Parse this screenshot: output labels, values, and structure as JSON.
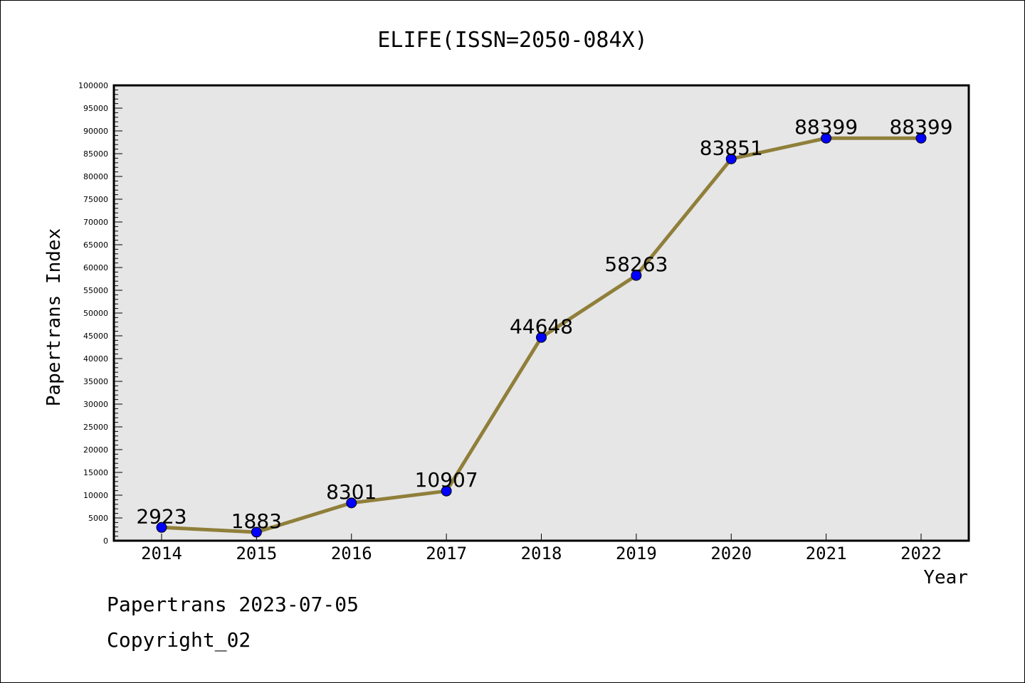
{
  "chart_data": {
    "type": "line",
    "title": "ELIFE(ISSN=2050-084X)",
    "xlabel": "Year",
    "ylabel": "Papertrans Index",
    "categories": [
      "2014",
      "2015",
      "2016",
      "2017",
      "2018",
      "2019",
      "2020",
      "2021",
      "2022"
    ],
    "series": [
      {
        "values": [
          2923,
          1883,
          8301,
          10907,
          44648,
          58263,
          83851,
          88399,
          88399
        ]
      }
    ],
    "ylim": [
      0,
      100000
    ],
    "ytick_step": 5000,
    "grid": false,
    "legend": "none",
    "colors": {
      "line": "#8f7f3a",
      "marker": "#0000ff",
      "plot_background": "#e6e6e6",
      "axis": "#000000"
    }
  },
  "footer": {
    "date_line": "Papertrans 2023-07-05",
    "copyright_line": "Copyright_02"
  }
}
